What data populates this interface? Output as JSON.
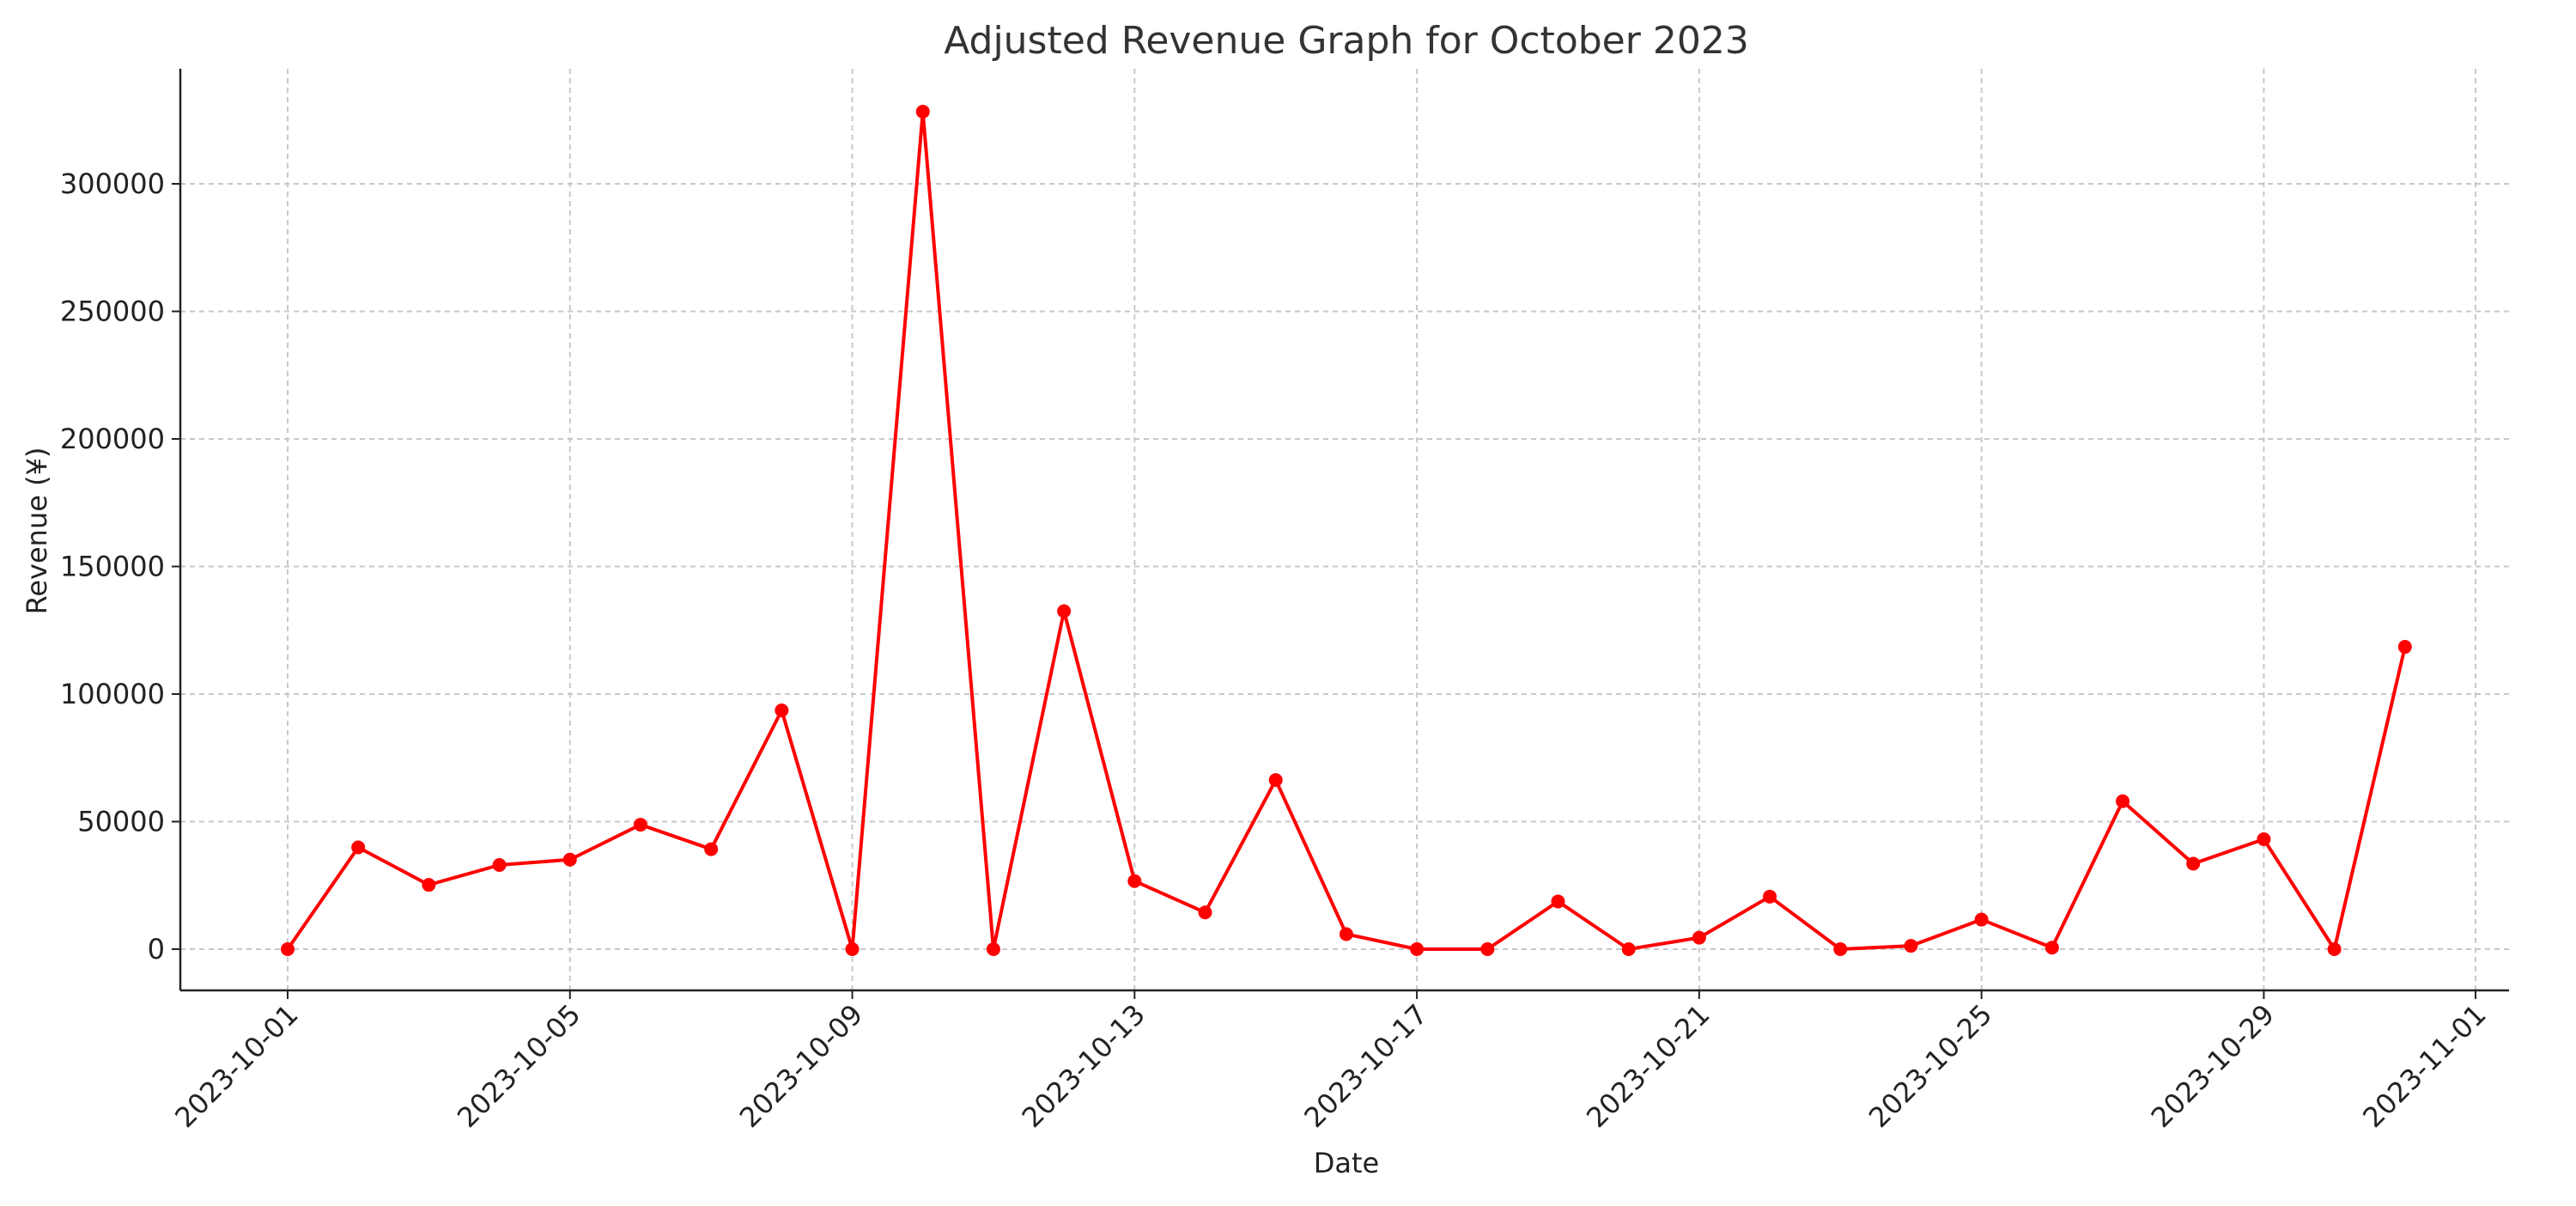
{
  "chart_data": {
    "type": "line",
    "title": "Adjusted Revenue Graph for October 2023",
    "xlabel": "Date",
    "ylabel": "Revenue (¥)",
    "x": [
      "2023-10-01",
      "2023-10-02",
      "2023-10-03",
      "2023-10-04",
      "2023-10-05",
      "2023-10-06",
      "2023-10-07",
      "2023-10-08",
      "2023-10-09",
      "2023-10-10",
      "2023-10-11",
      "2023-10-12",
      "2023-10-13",
      "2023-10-14",
      "2023-10-15",
      "2023-10-16",
      "2023-10-17",
      "2023-10-18",
      "2023-10-19",
      "2023-10-20",
      "2023-10-21",
      "2023-10-22",
      "2023-10-23",
      "2023-10-24",
      "2023-10-25",
      "2023-10-26",
      "2023-10-27",
      "2023-10-28",
      "2023-10-29",
      "2023-10-30",
      "2023-10-31"
    ],
    "series": [
      {
        "name": "Revenue",
        "color": "#ff0000",
        "marker": "circle",
        "values": [
          0,
          39900,
          25200,
          33000,
          35100,
          48800,
          39200,
          93600,
          0,
          328300,
          0,
          132500,
          26700,
          14400,
          66300,
          5900,
          0,
          0,
          18700,
          0,
          4500,
          20600,
          0,
          1300,
          11600,
          600,
          58000,
          33500,
          43100,
          0,
          118500
        ]
      }
    ],
    "xticks": [
      "2023-10-01",
      "2023-10-05",
      "2023-10-09",
      "2023-10-13",
      "2023-10-17",
      "2023-10-21",
      "2023-10-25",
      "2023-10-29",
      "2023-11-01"
    ],
    "yticks": [
      0,
      50000,
      100000,
      150000,
      200000,
      250000,
      300000
    ],
    "ylim": [
      -16400,
      344700
    ],
    "xlim": [
      "2023-09-29T12:00",
      "2023-11-01T12:00"
    ],
    "grid": true,
    "legend": "none"
  }
}
